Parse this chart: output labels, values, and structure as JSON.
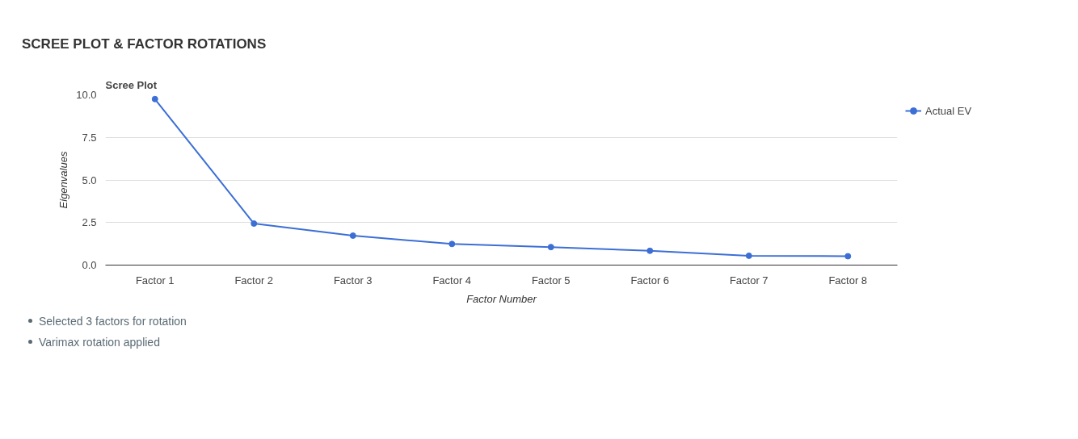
{
  "chart_data": {
    "type": "line",
    "title": "SCREE PLOT & FACTOR ROTATIONS",
    "subtitle": "Scree Plot",
    "xlabel": "Factor Number",
    "ylabel": "Eigenvalues",
    "categories": [
      "Factor 1",
      "Factor 2",
      "Factor 3",
      "Factor 4",
      "Factor 5",
      "Factor 6",
      "Factor 7",
      "Factor 8"
    ],
    "series": [
      {
        "name": "Actual EV",
        "color": "#3c6fd6",
        "values": [
          9.75,
          2.44,
          1.73,
          1.24,
          1.06,
          0.84,
          0.55,
          0.52
        ]
      }
    ],
    "ylim": [
      0,
      10
    ],
    "yticks": [
      {
        "value": 0,
        "label": "0.0"
      },
      {
        "value": 2.5,
        "label": "2.5"
      },
      {
        "value": 5,
        "label": "5.0"
      },
      {
        "value": 7.5,
        "label": "7.5"
      },
      {
        "value": 10,
        "label": "10.0"
      }
    ],
    "grid": "y",
    "legend": "right",
    "marker": "circle",
    "line_style": "solid",
    "annotations": [
      "Selected 3 factors for rotation",
      "Varimax rotation applied"
    ]
  }
}
